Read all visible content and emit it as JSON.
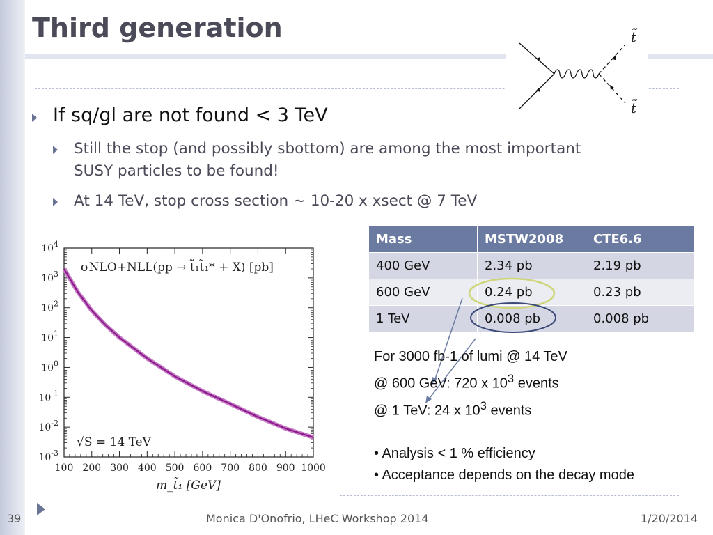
{
  "slide": {
    "title": "Third generation",
    "bullet1": "If sq/gl are not found < 3 TeV",
    "sub_bullets": [
      "Still the stop (and possibly sbottom) are among the most important SUSY particles to be found!",
      "At 14 TeV, stop cross section ~ 10-20 x xsect @ 7 TeV"
    ]
  },
  "feynman": {
    "label_top": "t̃",
    "label_bottom": "t̃̄"
  },
  "table": {
    "headers": [
      "Mass",
      "MSTW2008",
      "CTE6.6"
    ],
    "rows": [
      [
        "400 GeV",
        "2.34 pb",
        "2.19 pb"
      ],
      [
        "600 GeV",
        "0.24 pb",
        "0.23 pb"
      ],
      [
        "1 TeV",
        "0.008 pb",
        "0.008 pb"
      ]
    ]
  },
  "notes": {
    "line1": "For 3000 fb-1 of lumi @ 14 TeV",
    "line2_pre": "@ 600 GeV:  720 x 10",
    "line2_sup": "3",
    "line2_post": " events",
    "line3_pre": "@ 1 TeV:  24 x 10",
    "line3_sup": "3",
    "line3_post": " events",
    "bullets": [
      "• Analysis < 1 % efficiency",
      "• Acceptance depends on the decay mode"
    ]
  },
  "footer": {
    "page": "39",
    "center": "Monica D'Onofrio, LHeC Workshop 2014",
    "date": "1/20/2014"
  },
  "colors": {
    "curve": "#8b1a8b",
    "band": "#c77bc7",
    "circle_green": "#cfd67a",
    "circle_navy": "#3c4a7a",
    "arrow": "#6b7aa0"
  },
  "chart_data": {
    "type": "line",
    "title": "σNLO+NLL(pp → t̃₁t̃₁* + X) [pb]",
    "annotation": "√S = 14 TeV",
    "xlabel": "m_t̃₁ [GeV]",
    "ylabel": "",
    "log_y": true,
    "xlim": [
      100,
      1000
    ],
    "ylim": [
      0.001,
      10000
    ],
    "x_ticks": [
      "100",
      "200",
      "300",
      "400",
      "500",
      "600",
      "700",
      "800",
      "900",
      "1000"
    ],
    "y_ticks": [
      "10^4",
      "10^3",
      "10^2",
      "10^1",
      "10^0",
      "10^-1",
      "10^-2",
      "10^-3"
    ],
    "series": [
      {
        "x": [
          100,
          150,
          200,
          250,
          300,
          400,
          500,
          600,
          700,
          800,
          900,
          1000
        ],
        "values": [
          2000,
          330,
          80,
          26,
          10,
          2.0,
          0.5,
          0.16,
          0.06,
          0.022,
          0.009,
          0.0045
        ]
      }
    ]
  }
}
